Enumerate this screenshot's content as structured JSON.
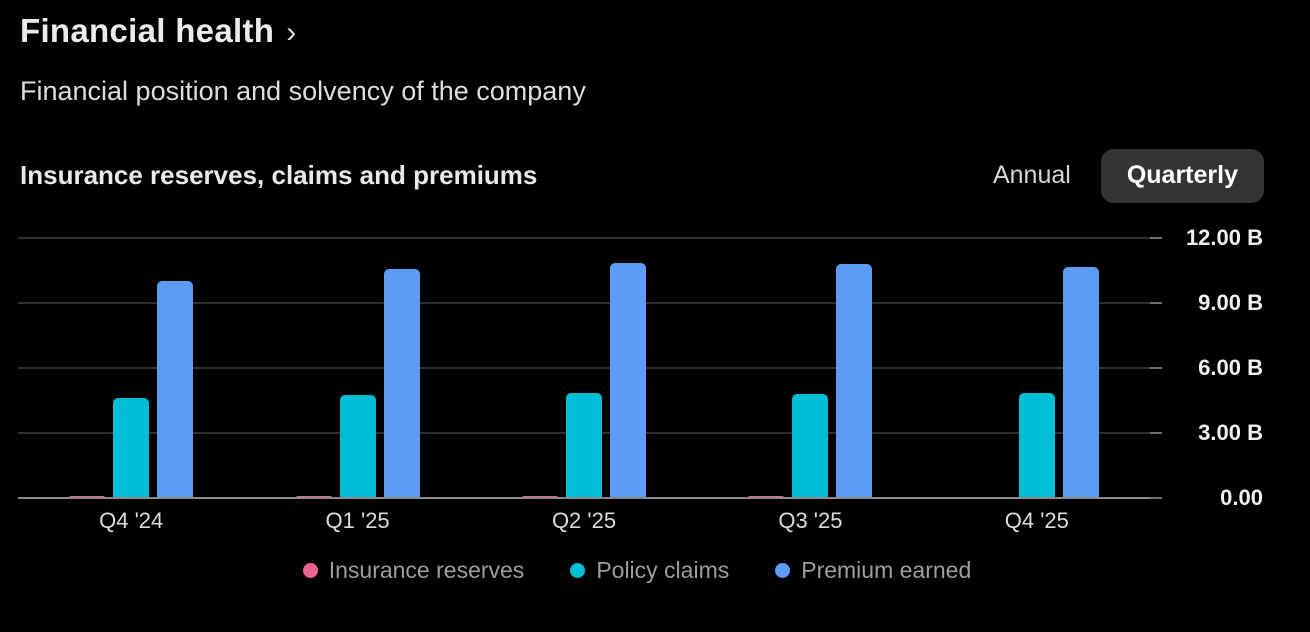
{
  "header": {
    "title": "Financial health",
    "chevron": "›",
    "subtitle": "Financial position and solvency of the company"
  },
  "section": {
    "title": "Insurance reserves, claims and premiums",
    "toggle": {
      "options": [
        {
          "label": "Annual",
          "selected": false
        },
        {
          "label": "Quarterly",
          "selected": true
        }
      ]
    }
  },
  "chart_data": {
    "type": "bar",
    "title": "Insurance reserves, claims and premiums",
    "categories": [
      "Q4 '24",
      "Q1 '25",
      "Q2 '25",
      "Q3 '25",
      "Q4 '25"
    ],
    "series": [
      {
        "name": "Insurance reserves",
        "color": "#ef6292",
        "values": [
          0.09,
          0.07,
          0.08,
          0.07,
          0
        ]
      },
      {
        "name": "Policy claims",
        "color": "#00bdd6",
        "values": [
          4.6,
          4.75,
          4.85,
          4.8,
          4.85
        ]
      },
      {
        "name": "Premium earned",
        "color": "#5c9cf5",
        "values": [
          10.0,
          10.55,
          10.85,
          10.8,
          10.65
        ]
      }
    ],
    "ylim": [
      0,
      12
    ],
    "yticks": [
      {
        "value": 0,
        "label": "0.00"
      },
      {
        "value": 3,
        "label": "3.00 B"
      },
      {
        "value": 6,
        "label": "6.00 B"
      },
      {
        "value": 9,
        "label": "9.00 B"
      },
      {
        "value": 12,
        "label": "12.00 B"
      }
    ],
    "grid": true,
    "legend_position": "bottom",
    "y_axis_side": "right"
  },
  "colors": {
    "background": "#000000",
    "gridline": "#2e2e2e",
    "baseline": "#8b8b8b",
    "selected_toggle_bg": "#343434"
  }
}
